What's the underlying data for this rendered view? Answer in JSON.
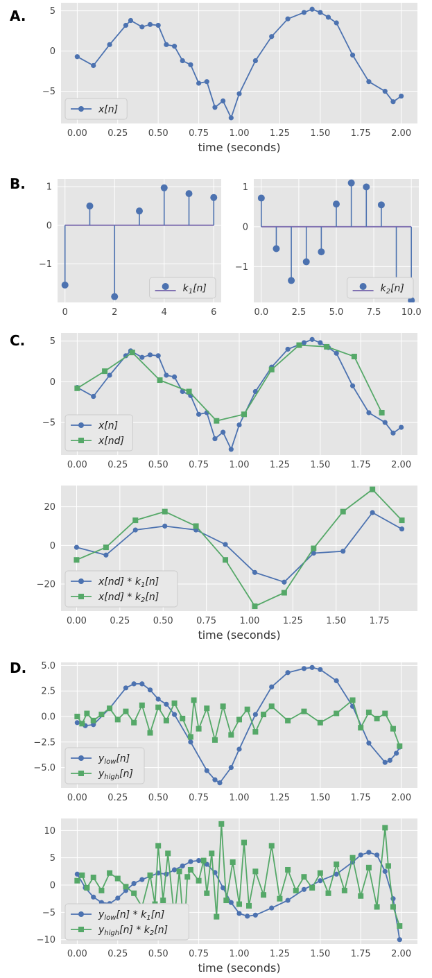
{
  "panel_labels": [
    "A.",
    "B.",
    "C.",
    "D."
  ],
  "colors": {
    "blue": "#4c72b0",
    "green": "#55a868",
    "stem_base": "#8172b2",
    "axes_bg": "#e5e5e5",
    "grid": "#ffffff"
  },
  "chart_data": [
    {
      "id": "A",
      "type": "line",
      "xlabel": "time (seconds)",
      "xlim": [
        -0.1,
        2.1
      ],
      "ylim": [
        -9,
        6
      ],
      "xticks": [
        0,
        0.25,
        0.5,
        0.75,
        1.0,
        1.25,
        1.5,
        1.75,
        2.0
      ],
      "xtick_labels": [
        "0.00",
        "0.25",
        "0.50",
        "0.75",
        "1.00",
        "1.25",
        "1.50",
        "1.75",
        "2.00"
      ],
      "yticks": [
        -5,
        0,
        5
      ],
      "ytick_labels": [
        "−5",
        "0",
        "5"
      ],
      "legend_position": "lower-left",
      "series": [
        {
          "name": "x[n]",
          "legend": [
            {
              "t": "x[n"
            },
            {
              "t": "]"
            }
          ],
          "color": "blue",
          "marker": "circle",
          "x": [
            0.0,
            0.1,
            0.2,
            0.3,
            0.33,
            0.4,
            0.45,
            0.5,
            0.55,
            0.6,
            0.65,
            0.7,
            0.75,
            0.8,
            0.85,
            0.9,
            0.95,
            1.0,
            1.1,
            1.2,
            1.3,
            1.4,
            1.45,
            1.5,
            1.55,
            1.6,
            1.7,
            1.8,
            1.9,
            1.95,
            2.0
          ],
          "y": [
            -0.7,
            -1.8,
            0.8,
            3.2,
            3.8,
            3.0,
            3.3,
            3.2,
            0.8,
            0.6,
            -1.2,
            -1.7,
            -4.0,
            -3.8,
            -7.0,
            -6.2,
            -8.3,
            -5.3,
            -1.2,
            1.8,
            4.0,
            4.8,
            5.2,
            4.8,
            4.2,
            3.5,
            -0.5,
            -3.8,
            -5.0,
            -6.3,
            -5.6
          ]
        }
      ]
    },
    {
      "id": "B1",
      "type": "stem",
      "xlim": [
        -0.3,
        6.3
      ],
      "ylim": [
        -2.0,
        1.2
      ],
      "xticks": [
        0,
        2,
        4,
        6
      ],
      "xtick_labels": [
        "0",
        "2",
        "4",
        "6"
      ],
      "yticks": [
        -1,
        0,
        1
      ],
      "ytick_labels": [
        "−1",
        "0",
        "1"
      ],
      "legend_position": "lower-right",
      "series": [
        {
          "name": "k1[n]",
          "legend": [
            {
              "t": "k"
            },
            {
              "t": "1",
              "sub": true
            },
            {
              "t": "[n]"
            }
          ],
          "color": "blue",
          "x": [
            0,
            1,
            2,
            3,
            4,
            5,
            6
          ],
          "y": [
            -1.55,
            0.5,
            -1.85,
            0.37,
            0.97,
            0.82,
            0.72
          ]
        }
      ]
    },
    {
      "id": "B2",
      "type": "stem",
      "xlim": [
        -0.5,
        10.5
      ],
      "ylim": [
        -1.9,
        1.2
      ],
      "xticks": [
        0,
        2.5,
        5,
        7.5,
        10
      ],
      "xtick_labels": [
        "0.0",
        "2.5",
        "5.0",
        "7.5",
        "10.0"
      ],
      "yticks": [
        -1,
        0,
        1
      ],
      "ytick_labels": [
        "−1",
        "0",
        "1"
      ],
      "legend_position": "lower-right",
      "series": [
        {
          "name": "k2[n]",
          "legend": [
            {
              "t": "k"
            },
            {
              "t": "2",
              "sub": true
            },
            {
              "t": "[n]"
            }
          ],
          "color": "blue",
          "x": [
            0,
            1,
            2,
            3,
            4,
            5,
            6,
            7,
            8,
            9,
            10
          ],
          "y": [
            0.72,
            -0.55,
            -1.35,
            -0.88,
            -0.63,
            0.57,
            1.1,
            1.0,
            0.55,
            -1.42,
            -1.85
          ]
        }
      ]
    },
    {
      "id": "C1",
      "type": "line",
      "xlim": [
        -0.1,
        2.1
      ],
      "ylim": [
        -9,
        6
      ],
      "xticks": [
        0,
        0.25,
        0.5,
        0.75,
        1.0,
        1.25,
        1.5,
        1.75,
        2.0
      ],
      "xtick_labels": [
        "0.00",
        "0.25",
        "0.50",
        "0.75",
        "1.00",
        "1.25",
        "1.50",
        "1.75",
        "2.00"
      ],
      "yticks": [
        -5,
        0,
        5
      ],
      "ytick_labels": [
        "−5",
        "0",
        "5"
      ],
      "legend_position": "lower-left",
      "series": [
        {
          "name": "x[n]",
          "legend": [
            {
              "t": "x[n"
            },
            {
              "t": "]"
            }
          ],
          "color": "blue",
          "marker": "circle",
          "x": [
            0.0,
            0.1,
            0.2,
            0.3,
            0.33,
            0.4,
            0.45,
            0.5,
            0.55,
            0.6,
            0.65,
            0.7,
            0.75,
            0.8,
            0.85,
            0.9,
            0.95,
            1.0,
            1.1,
            1.2,
            1.3,
            1.4,
            1.45,
            1.5,
            1.55,
            1.6,
            1.7,
            1.8,
            1.9,
            1.95,
            2.0
          ],
          "y": [
            -0.7,
            -1.8,
            0.8,
            3.2,
            3.8,
            3.0,
            3.3,
            3.2,
            0.8,
            0.6,
            -1.2,
            -1.7,
            -4.0,
            -3.8,
            -7.0,
            -6.2,
            -8.3,
            -5.3,
            -1.2,
            1.8,
            4.0,
            4.8,
            5.2,
            4.8,
            4.2,
            3.5,
            -0.5,
            -3.8,
            -5.0,
            -6.3,
            -5.6
          ]
        },
        {
          "name": "x[nd]",
          "legend": [
            {
              "t": "x[nd"
            },
            {
              "t": "]"
            }
          ],
          "color": "green",
          "marker": "square",
          "x": [
            0.0,
            0.17,
            0.34,
            0.51,
            0.69,
            0.86,
            1.03,
            1.2,
            1.37,
            1.54,
            1.71,
            1.88
          ],
          "y": [
            -0.8,
            1.3,
            3.6,
            0.2,
            -1.2,
            -4.8,
            -4.0,
            1.5,
            4.5,
            4.3,
            3.1,
            -3.8
          ]
        }
      ]
    },
    {
      "id": "C2",
      "type": "line",
      "xlabel": "time (seconds)",
      "xlim": [
        -0.09,
        1.97
      ],
      "ylim": [
        -34,
        31
      ],
      "xticks": [
        0,
        0.25,
        0.5,
        0.75,
        1.0,
        1.25,
        1.5,
        1.75
      ],
      "xtick_labels": [
        "0.00",
        "0.25",
        "0.50",
        "0.75",
        "1.00",
        "1.25",
        "1.50",
        "1.75"
      ],
      "yticks": [
        -20,
        0,
        20
      ],
      "ytick_labels": [
        "−20",
        "0",
        "20"
      ],
      "legend_position": "lower-left",
      "series": [
        {
          "name": "x[nd]*k1[n]",
          "legend": [
            {
              "t": "x[nd"
            },
            {
              "t": "] * k"
            },
            {
              "t": "1",
              "sub": true
            },
            {
              "t": "[n]"
            }
          ],
          "color": "blue",
          "marker": "circle",
          "x": [
            0.0,
            0.17,
            0.34,
            0.51,
            0.69,
            0.86,
            1.03,
            1.2,
            1.37,
            1.54,
            1.71,
            1.88
          ],
          "y": [
            -1,
            -5,
            8,
            10,
            8,
            0.5,
            -14,
            -19,
            -4,
            -3,
            17,
            8.5
          ]
        },
        {
          "name": "x[nd]*k2[n]",
          "legend": [
            {
              "t": "x[nd"
            },
            {
              "t": "] * k"
            },
            {
              "t": "2",
              "sub": true
            },
            {
              "t": "[n]"
            }
          ],
          "color": "green",
          "marker": "square",
          "x": [
            0.0,
            0.17,
            0.34,
            0.51,
            0.69,
            0.86,
            1.03,
            1.2,
            1.37,
            1.54,
            1.71,
            1.88
          ],
          "y": [
            -7.5,
            -1,
            13,
            17.5,
            10,
            -7.5,
            -31.5,
            -24.5,
            -1.5,
            17.5,
            29,
            13
          ]
        }
      ]
    },
    {
      "id": "D1",
      "type": "line",
      "xlim": [
        -0.1,
        2.1
      ],
      "ylim": [
        -7.0,
        5.3
      ],
      "xticks": [
        0,
        0.25,
        0.5,
        0.75,
        1.0,
        1.25,
        1.5,
        1.75,
        2.0
      ],
      "xtick_labels": [
        "0.00",
        "0.25",
        "0.50",
        "0.75",
        "1.00",
        "1.25",
        "1.50",
        "1.75",
        "2.00"
      ],
      "yticks": [
        -5,
        -2.5,
        0,
        2.5,
        5
      ],
      "ytick_labels": [
        "−5.0",
        "−2.5",
        "0.0",
        "2.5",
        "5.0"
      ],
      "legend_position": "lower-left",
      "series": [
        {
          "name": "ylow[n]",
          "legend": [
            {
              "t": "y"
            },
            {
              "t": "low",
              "sub": true
            },
            {
              "t": "[n]"
            }
          ],
          "color": "blue",
          "marker": "circle",
          "x": [
            0.0,
            0.05,
            0.1,
            0.2,
            0.3,
            0.35,
            0.4,
            0.45,
            0.5,
            0.55,
            0.6,
            0.7,
            0.8,
            0.85,
            0.88,
            0.95,
            1.0,
            1.1,
            1.2,
            1.3,
            1.4,
            1.45,
            1.5,
            1.6,
            1.7,
            1.8,
            1.9,
            1.93,
            1.97,
            1.99
          ],
          "y": [
            -0.6,
            -0.9,
            -0.8,
            0.8,
            2.8,
            3.2,
            3.2,
            2.6,
            1.7,
            1.2,
            0.2,
            -2.5,
            -5.3,
            -6.2,
            -6.5,
            -5.0,
            -3.2,
            0.2,
            2.9,
            4.3,
            4.7,
            4.8,
            4.6,
            3.5,
            1.0,
            -2.6,
            -4.5,
            -4.3,
            -3.6,
            -3.0
          ]
        },
        {
          "name": "yhigh[n]",
          "legend": [
            {
              "t": "y"
            },
            {
              "t": "high",
              "sub": true
            },
            {
              "t": "[n]"
            }
          ],
          "color": "green",
          "marker": "square",
          "x": [
            0.0,
            0.03,
            0.06,
            0.1,
            0.15,
            0.2,
            0.25,
            0.3,
            0.35,
            0.4,
            0.45,
            0.5,
            0.55,
            0.6,
            0.65,
            0.7,
            0.72,
            0.75,
            0.8,
            0.85,
            0.9,
            0.95,
            1.0,
            1.05,
            1.1,
            1.15,
            1.2,
            1.3,
            1.4,
            1.5,
            1.6,
            1.7,
            1.75,
            1.8,
            1.85,
            1.9,
            1.95,
            1.99
          ],
          "y": [
            0.0,
            -0.7,
            0.3,
            -0.4,
            0.2,
            0.8,
            -0.3,
            0.5,
            -0.6,
            1.1,
            -1.6,
            0.9,
            -0.4,
            1.3,
            -0.2,
            -2.0,
            1.6,
            -1.2,
            0.8,
            -2.3,
            1.0,
            -1.8,
            -0.3,
            0.7,
            -1.5,
            0.2,
            1.0,
            -0.4,
            0.5,
            -0.6,
            0.3,
            1.6,
            -1.1,
            0.4,
            -0.2,
            0.3,
            -1.2,
            -2.9
          ]
        }
      ]
    },
    {
      "id": "D2",
      "type": "line",
      "xlabel": "time (seconds)",
      "xlim": [
        -0.1,
        2.1
      ],
      "ylim": [
        -10.8,
        12.2
      ],
      "xticks": [
        0,
        0.25,
        0.5,
        0.75,
        1.0,
        1.25,
        1.5,
        1.75,
        2.0
      ],
      "xtick_labels": [
        "0.00",
        "0.25",
        "0.50",
        "0.75",
        "1.00",
        "1.25",
        "1.50",
        "1.75",
        "2.00"
      ],
      "yticks": [
        -10,
        -5,
        0,
        5,
        10
      ],
      "ytick_labels": [
        "−10",
        "−5",
        "0",
        "5",
        "10"
      ],
      "legend_position": "lower-left",
      "series": [
        {
          "name": "ylow[n]*k1[n]",
          "legend": [
            {
              "t": "y"
            },
            {
              "t": "low",
              "sub": true
            },
            {
              "t": "[n] * k"
            },
            {
              "t": "1",
              "sub": true
            },
            {
              "t": "[n]"
            }
          ],
          "color": "blue",
          "marker": "circle",
          "x": [
            0.0,
            0.05,
            0.1,
            0.15,
            0.2,
            0.25,
            0.3,
            0.35,
            0.4,
            0.45,
            0.5,
            0.55,
            0.6,
            0.65,
            0.7,
            0.75,
            0.8,
            0.85,
            0.9,
            0.95,
            1.0,
            1.05,
            1.1,
            1.2,
            1.3,
            1.4,
            1.5,
            1.6,
            1.7,
            1.75,
            1.8,
            1.85,
            1.9,
            1.95,
            1.99
          ],
          "y": [
            2.0,
            -0.5,
            -2.2,
            -3.2,
            -3.4,
            -2.4,
            -1.0,
            0.3,
            1.0,
            1.6,
            2.2,
            2.0,
            2.8,
            3.5,
            4.3,
            4.5,
            3.8,
            2.3,
            -0.5,
            -3.2,
            -5.2,
            -5.7,
            -5.5,
            -4.2,
            -2.8,
            -0.8,
            0.8,
            2.0,
            4.2,
            5.5,
            6.0,
            5.5,
            2.5,
            -2.5,
            -10.0
          ]
        },
        {
          "name": "yhigh[n]*k2[n]",
          "legend": [
            {
              "t": "y"
            },
            {
              "t": "high",
              "sub": true
            },
            {
              "t": "[n] * k"
            },
            {
              "t": "2",
              "sub": true
            },
            {
              "t": "[n]"
            }
          ],
          "color": "green",
          "marker": "square",
          "x": [
            0.0,
            0.03,
            0.06,
            0.1,
            0.15,
            0.2,
            0.25,
            0.3,
            0.35,
            0.4,
            0.45,
            0.48,
            0.5,
            0.53,
            0.56,
            0.6,
            0.63,
            0.66,
            0.68,
            0.7,
            0.75,
            0.78,
            0.8,
            0.83,
            0.86,
            0.89,
            0.92,
            0.96,
            1.0,
            1.03,
            1.06,
            1.1,
            1.15,
            1.2,
            1.25,
            1.3,
            1.35,
            1.4,
            1.45,
            1.5,
            1.55,
            1.6,
            1.65,
            1.7,
            1.75,
            1.8,
            1.85,
            1.9,
            1.92,
            1.95,
            1.99
          ],
          "y": [
            0.8,
            1.8,
            -0.5,
            1.4,
            -1.0,
            2.2,
            1.2,
            -0.3,
            -1.5,
            -4.0,
            1.8,
            -3.5,
            7.2,
            -2.8,
            5.8,
            -6.0,
            2.5,
            -9.0,
            1.5,
            2.8,
            0.8,
            4.5,
            -1.5,
            5.8,
            -5.8,
            11.2,
            -2.8,
            4.2,
            -3.5,
            7.8,
            -3.8,
            2.5,
            -1.8,
            7.2,
            -2.5,
            2.8,
            -1.0,
            1.5,
            -0.5,
            2.2,
            -1.5,
            3.8,
            -1.0,
            5.0,
            -2.0,
            3.2,
            -4.0,
            10.5,
            3.5,
            -4.0,
            -7.5
          ]
        }
      ]
    }
  ]
}
